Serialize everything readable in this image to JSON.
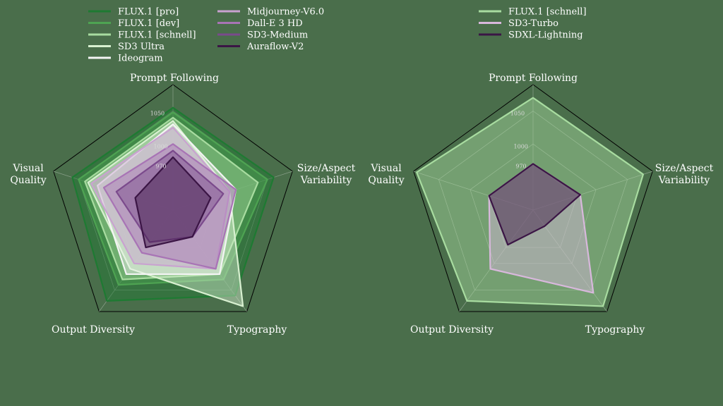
{
  "chart_data": [
    {
      "type": "radar",
      "axes": [
        "Prompt Following",
        "Size/Aspect\nVariability",
        "Typography",
        "Output Diversity",
        "Visual\nQuality"
      ],
      "ticks": [
        {
          "value": 970,
          "label": "970"
        },
        {
          "value": 1000,
          "label": "1000"
        },
        {
          "value": 1050,
          "label": "1050"
        }
      ],
      "rlim": [
        900,
        1090
      ],
      "legend_placement": "top",
      "series": [
        {
          "name": "FLUX.1 [pro]",
          "color": "#1e7a32",
          "values": [
            1055,
            1060,
            1060,
            1070,
            1060
          ]
        },
        {
          "name": "FLUX.1 [dev]",
          "color": "#4ea352",
          "values": [
            1048,
            1050,
            1030,
            1040,
            1050
          ]
        },
        {
          "name": "FLUX.1 [schnell]",
          "color": "#a8dca0",
          "values": [
            1040,
            1035,
            1020,
            1030,
            1040
          ]
        },
        {
          "name": "SD3 Ultra",
          "color": "#d8f0d0",
          "values": [
            1035,
            990,
            1080,
            1010,
            1035
          ]
        },
        {
          "name": "Ideogram",
          "color": "#f4f4f4",
          "values": [
            1030,
            1000,
            1020,
            1020,
            1020
          ]
        },
        {
          "name": "Midjourney-V6.0",
          "color": "#c9a2d0",
          "values": [
            1025,
            990,
            1010,
            1000,
            1030
          ]
        },
        {
          "name": "Dall-E 3 HD",
          "color": "#a874b5",
          "values": [
            1000,
            1000,
            1010,
            980,
            1010
          ]
        },
        {
          "name": "SD3-Medium",
          "color": "#7b4a8c",
          "values": [
            990,
            980,
            950,
            960,
            990
          ]
        },
        {
          "name": "Auraflow-V2",
          "color": "#3b1545",
          "values": [
            980,
            960,
            950,
            970,
            960
          ]
        }
      ]
    },
    {
      "type": "radar",
      "axes": [
        "Prompt Following",
        "Size/Aspect\nVariability",
        "Typography",
        "Output Diversity",
        "Visual\nQuality"
      ],
      "ticks": [
        {
          "value": 970,
          "label": "970"
        },
        {
          "value": 1000,
          "label": "1000"
        },
        {
          "value": 1050,
          "label": "1050"
        }
      ],
      "rlim": [
        900,
        1090
      ],
      "legend_placement": "top",
      "series": [
        {
          "name": "FLUX.1 [schnell]",
          "color": "#a8dca0",
          "values": [
            1070,
            1075,
            1080,
            1070,
            1085
          ]
        },
        {
          "name": "SD3-Turbo",
          "color": "#d8b8dc",
          "values": [
            970,
            975,
            1055,
            1010,
            970
          ]
        },
        {
          "name": "SDXL-Lightning",
          "color": "#3b1545",
          "values": [
            970,
            975,
            930,
            965,
            970
          ]
        }
      ]
    }
  ]
}
